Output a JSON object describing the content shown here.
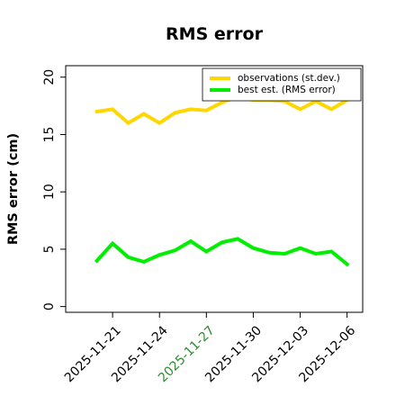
{
  "chart_data": {
    "type": "line",
    "title": "RMS error",
    "xlabel": "",
    "ylabel": "RMS error (cm)",
    "ylim": [
      -0.5,
      21
    ],
    "yticks": [
      0,
      5,
      10,
      15,
      20
    ],
    "xticks": [
      {
        "label": "2025-11-21",
        "color": "#000000"
      },
      {
        "label": "2025-11-24",
        "color": "#000000"
      },
      {
        "label": "2025-11-27",
        "color": "#2e8b2e"
      },
      {
        "label": "2025-11-30",
        "color": "#000000"
      },
      {
        "label": "2025-12-03",
        "color": "#000000"
      },
      {
        "label": "2025-12-06",
        "color": "#000000"
      }
    ],
    "x": [
      "2025-11-20",
      "2025-11-21",
      "2025-11-22",
      "2025-11-23",
      "2025-11-24",
      "2025-11-25",
      "2025-11-26",
      "2025-11-27",
      "2025-11-28",
      "2025-11-29",
      "2025-11-30",
      "2025-12-01",
      "2025-12-02",
      "2025-12-03",
      "2025-12-04",
      "2025-12-05",
      "2025-12-06"
    ],
    "xlim": [
      "2025-11-18",
      "2025-12-07"
    ],
    "legend_position": "top-right",
    "grid": false,
    "series": [
      {
        "name": "observations (st.dev.)",
        "color": "#ffd700",
        "values": [
          17.0,
          17.2,
          16.0,
          16.8,
          16.0,
          16.9,
          17.2,
          17.1,
          17.8,
          18.3,
          18.0,
          18.0,
          17.9,
          17.2,
          17.9,
          17.2,
          18.0
        ]
      },
      {
        "name": "best est. (RMS error)",
        "color": "#00ee00",
        "values": [
          4.0,
          5.5,
          4.3,
          3.9,
          4.5,
          4.9,
          5.7,
          4.8,
          5.6,
          5.9,
          5.1,
          4.7,
          4.6,
          5.1,
          4.6,
          4.8,
          3.7
        ]
      }
    ]
  }
}
